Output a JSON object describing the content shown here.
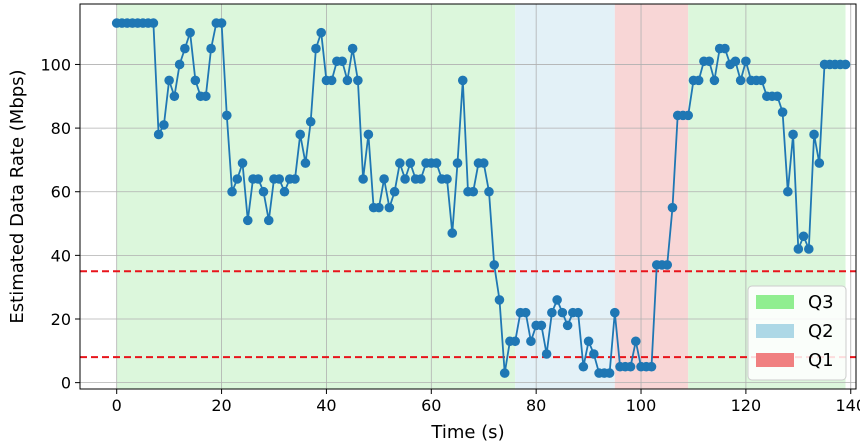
{
  "chart_data": {
    "type": "line",
    "xlabel": "Time (s)",
    "ylabel": "Estimated Data Rate (Mbps)",
    "xlim": [
      -7,
      141
    ],
    "ylim": [
      -2,
      119
    ],
    "xticks": [
      0,
      20,
      40,
      60,
      80,
      100,
      120,
      140
    ],
    "yticks": [
      0,
      20,
      40,
      60,
      80,
      100
    ],
    "grid": true,
    "legend_position": "bottom-right",
    "line_color": "#1f77b4",
    "regions": [
      {
        "label": "Q3",
        "from": 0,
        "to": 76,
        "fill": "#dcf7dc"
      },
      {
        "label": "Q2",
        "from": 76,
        "to": 95,
        "fill": "#e3f1f7"
      },
      {
        "label": "Q1",
        "from": 95,
        "to": 109,
        "fill": "#f8d6d6"
      },
      {
        "label": "Q3",
        "from": 109,
        "to": 139,
        "fill": "#dcf7dc"
      }
    ],
    "thresholds": [
      {
        "value": 35,
        "color": "#e8141b",
        "style": "dashed"
      },
      {
        "value": 8,
        "color": "#e8141b",
        "style": "dashed"
      }
    ],
    "legend": [
      {
        "label": "Q3",
        "color": "#90ee90"
      },
      {
        "label": "Q2",
        "color": "#add8e6"
      },
      {
        "label": "Q1",
        "color": "#f08080"
      }
    ],
    "series": [
      {
        "x": [
          0,
          1,
          2,
          3,
          4,
          5,
          6,
          7,
          8,
          9,
          10,
          11,
          12,
          13,
          14,
          15,
          16,
          17,
          18,
          19,
          20,
          21,
          22,
          23,
          24,
          25,
          26,
          27,
          28,
          29,
          30,
          31,
          32,
          33,
          34,
          35,
          36,
          37,
          38,
          39,
          40,
          41,
          42,
          43,
          44,
          45,
          46,
          47,
          48,
          49,
          50,
          51,
          52,
          53,
          54,
          55,
          56,
          57,
          58,
          59,
          60,
          61,
          62,
          63,
          64,
          65,
          66,
          67,
          68,
          69,
          70,
          71,
          72,
          73,
          74,
          75,
          76,
          77,
          78,
          79,
          80,
          81,
          82,
          83,
          84,
          85,
          86,
          87,
          88,
          89,
          90,
          91,
          92,
          93,
          94,
          95,
          96,
          97,
          98,
          99,
          100,
          101,
          102,
          103,
          104,
          105,
          106,
          107,
          108,
          109,
          110,
          111,
          112,
          113,
          114,
          115,
          116,
          117,
          118,
          119,
          120,
          121,
          122,
          123,
          124,
          125,
          126,
          127,
          128,
          129,
          130,
          131,
          132,
          133,
          134,
          135,
          136,
          137,
          138,
          139
        ],
        "y": [
          113,
          113,
          113,
          113,
          113,
          113,
          113,
          113,
          78,
          81,
          95,
          90,
          100,
          105,
          110,
          95,
          90,
          90,
          105,
          113,
          113,
          84,
          60,
          64,
          69,
          51,
          64,
          64,
          60,
          51,
          64,
          64,
          60,
          64,
          64,
          78,
          69,
          82,
          105,
          110,
          95,
          95,
          101,
          101,
          95,
          105,
          95,
          64,
          78,
          55,
          55,
          64,
          55,
          60,
          69,
          64,
          69,
          64,
          64,
          69,
          69,
          69,
          64,
          64,
          47,
          69,
          95,
          60,
          60,
          69,
          69,
          60,
          37,
          26,
          3,
          13,
          13,
          22,
          22,
          13,
          18,
          18,
          9,
          22,
          26,
          22,
          18,
          22,
          22,
          5,
          13,
          9,
          3,
          3,
          3,
          22,
          5,
          5,
          5,
          13,
          5,
          5,
          5,
          37,
          37,
          37,
          55,
          84,
          84,
          84,
          95,
          95,
          101,
          101,
          95,
          105,
          105,
          100,
          101,
          95,
          101,
          95,
          95,
          95,
          90,
          90,
          90,
          85,
          60,
          78,
          42,
          46,
          42,
          78,
          69,
          100,
          100,
          100,
          100,
          100
        ]
      }
    ]
  }
}
